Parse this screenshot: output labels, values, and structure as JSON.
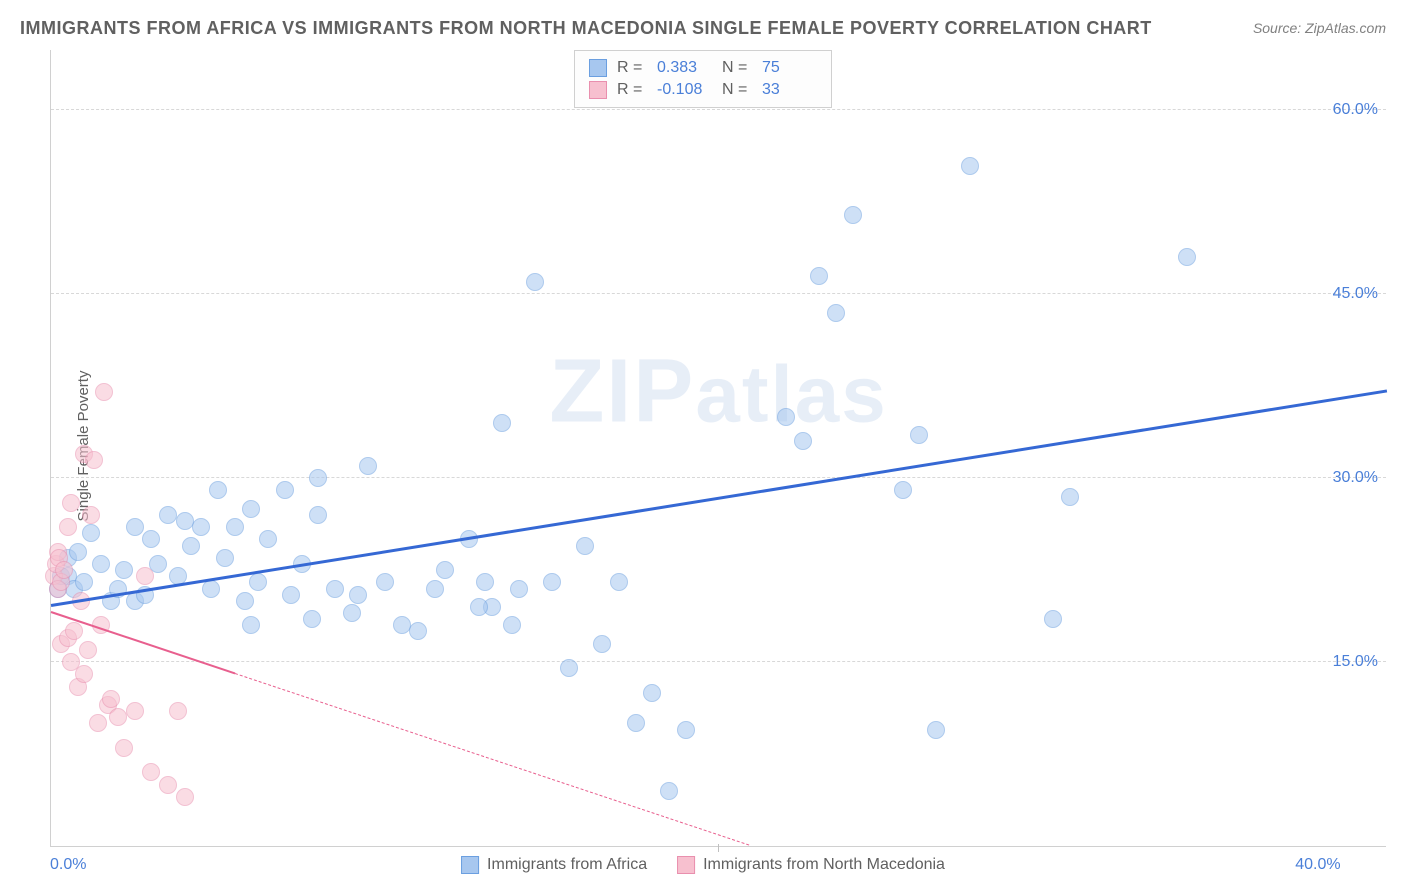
{
  "title": "IMMIGRANTS FROM AFRICA VS IMMIGRANTS FROM NORTH MACEDONIA SINGLE FEMALE POVERTY CORRELATION CHART",
  "source_label": "Source: ZipAtlas.com",
  "ylabel": "Single Female Poverty",
  "watermark": "ZIPatlas",
  "chart": {
    "type": "scatter-with-regression",
    "xlim": [
      0,
      40
    ],
    "ylim": [
      0,
      65
    ],
    "x_ticks": [
      {
        "v": 0,
        "label": "0.0%"
      },
      {
        "v": 20,
        "label": ""
      },
      {
        "v": 40,
        "label": "40.0%"
      }
    ],
    "y_gridlines": [
      {
        "v": 15,
        "label": "15.0%"
      },
      {
        "v": 30,
        "label": "30.0%"
      },
      {
        "v": 45,
        "label": "45.0%"
      },
      {
        "v": 60,
        "label": "60.0%"
      }
    ],
    "grid_color": "#d8d8d8",
    "axis_color": "#d0d0d0",
    "tick_label_color": "#4a7fd8",
    "tick_fontsize": 16,
    "title_fontsize": 18,
    "title_color": "#606060",
    "label_fontsize": 15,
    "point_radius": 9,
    "point_opacity": 0.55,
    "series": [
      {
        "name": "Immigrants from Africa",
        "color_fill": "#a7c7ef",
        "color_stroke": "#6b9fe0",
        "trend_color": "#3568d4",
        "trend_width": 2.5,
        "trend_dashed_after_data": false,
        "R": "0.383",
        "N": "75",
        "regression": {
          "x1": 0,
          "y1": 19.5,
          "x2": 40,
          "y2": 37.0
        },
        "points": [
          [
            0.2,
            21
          ],
          [
            0.3,
            22
          ],
          [
            0.5,
            23.5
          ],
          [
            0.5,
            22
          ],
          [
            0.7,
            21
          ],
          [
            0.8,
            24
          ],
          [
            1.0,
            21.5
          ],
          [
            1.2,
            25.5
          ],
          [
            1.5,
            23
          ],
          [
            1.8,
            20
          ],
          [
            2.0,
            21
          ],
          [
            2.2,
            22.5
          ],
          [
            2.5,
            26
          ],
          [
            2.5,
            20
          ],
          [
            2.8,
            20.5
          ],
          [
            3.0,
            25
          ],
          [
            3.2,
            23
          ],
          [
            3.5,
            27
          ],
          [
            3.8,
            22
          ],
          [
            4.0,
            26.5
          ],
          [
            4.2,
            24.5
          ],
          [
            4.5,
            26
          ],
          [
            4.8,
            21
          ],
          [
            5.0,
            29
          ],
          [
            5.2,
            23.5
          ],
          [
            5.5,
            26
          ],
          [
            5.8,
            20
          ],
          [
            6.0,
            27.5
          ],
          [
            6.2,
            21.5
          ],
          [
            6.5,
            25
          ],
          [
            7.0,
            29
          ],
          [
            7.2,
            20.5
          ],
          [
            7.5,
            23
          ],
          [
            7.8,
            18.5
          ],
          [
            8.0,
            27
          ],
          [
            8.5,
            21
          ],
          [
            9.0,
            19
          ],
          [
            9.2,
            20.5
          ],
          [
            9.5,
            31
          ],
          [
            10.0,
            21.5
          ],
          [
            10.5,
            18
          ],
          [
            11.0,
            17.5
          ],
          [
            11.5,
            21
          ],
          [
            12.5,
            25
          ],
          [
            13.0,
            21.5
          ],
          [
            13.2,
            19.5
          ],
          [
            13.5,
            34.5
          ],
          [
            13.8,
            18
          ],
          [
            14.0,
            21
          ],
          [
            14.5,
            46
          ],
          [
            15.0,
            21.5
          ],
          [
            15.5,
            14.5
          ],
          [
            16.0,
            24.5
          ],
          [
            16.5,
            16.5
          ],
          [
            17.0,
            21.5
          ],
          [
            17.5,
            10
          ],
          [
            18.0,
            12.5
          ],
          [
            18.5,
            4.5
          ],
          [
            19.0,
            9.5
          ],
          [
            22.0,
            35
          ],
          [
            22.5,
            33
          ],
          [
            23.0,
            46.5
          ],
          [
            23.5,
            43.5
          ],
          [
            24.0,
            51.5
          ],
          [
            25.5,
            29
          ],
          [
            26.0,
            33.5
          ],
          [
            26.5,
            9.5
          ],
          [
            27.5,
            55.5
          ],
          [
            30.0,
            18.5
          ],
          [
            30.5,
            28.5
          ],
          [
            34.0,
            48
          ],
          [
            8.0,
            30
          ],
          [
            6.0,
            18
          ],
          [
            11.8,
            22.5
          ],
          [
            12.8,
            19.5
          ]
        ]
      },
      {
        "name": "Immigrants from North Macedonia",
        "color_fill": "#f7c0cf",
        "color_stroke": "#e98fae",
        "trend_color": "#e85f8e",
        "trend_width": 2,
        "trend_dashed_after_data": true,
        "dash_start_x": 5.5,
        "R": "-0.108",
        "N": "33",
        "regression": {
          "x1": 0,
          "y1": 19.0,
          "x2": 22,
          "y2": -1.0
        },
        "points": [
          [
            0.1,
            22
          ],
          [
            0.15,
            23
          ],
          [
            0.2,
            24
          ],
          [
            0.2,
            21
          ],
          [
            0.25,
            23.5
          ],
          [
            0.3,
            21.5
          ],
          [
            0.3,
            16.5
          ],
          [
            0.4,
            22.5
          ],
          [
            0.5,
            26
          ],
          [
            0.5,
            17
          ],
          [
            0.6,
            28
          ],
          [
            0.6,
            15
          ],
          [
            0.7,
            17.5
          ],
          [
            0.8,
            13
          ],
          [
            0.9,
            20
          ],
          [
            1.0,
            32
          ],
          [
            1.0,
            14
          ],
          [
            1.1,
            16
          ],
          [
            1.2,
            27
          ],
          [
            1.3,
            31.5
          ],
          [
            1.4,
            10
          ],
          [
            1.5,
            18
          ],
          [
            1.6,
            37
          ],
          [
            1.7,
            11.5
          ],
          [
            1.8,
            12
          ],
          [
            2.0,
            10.5
          ],
          [
            2.2,
            8
          ],
          [
            2.5,
            11
          ],
          [
            2.8,
            22
          ],
          [
            3.0,
            6
          ],
          [
            3.5,
            5
          ],
          [
            3.8,
            11
          ],
          [
            4.0,
            4
          ]
        ]
      }
    ],
    "legend_bottom": [
      {
        "label": "Immigrants from Africa",
        "fill": "#a7c7ef",
        "stroke": "#6b9fe0"
      },
      {
        "label": "Immigrants from North Macedonia",
        "fill": "#f7c0cf",
        "stroke": "#e98fae"
      }
    ]
  }
}
